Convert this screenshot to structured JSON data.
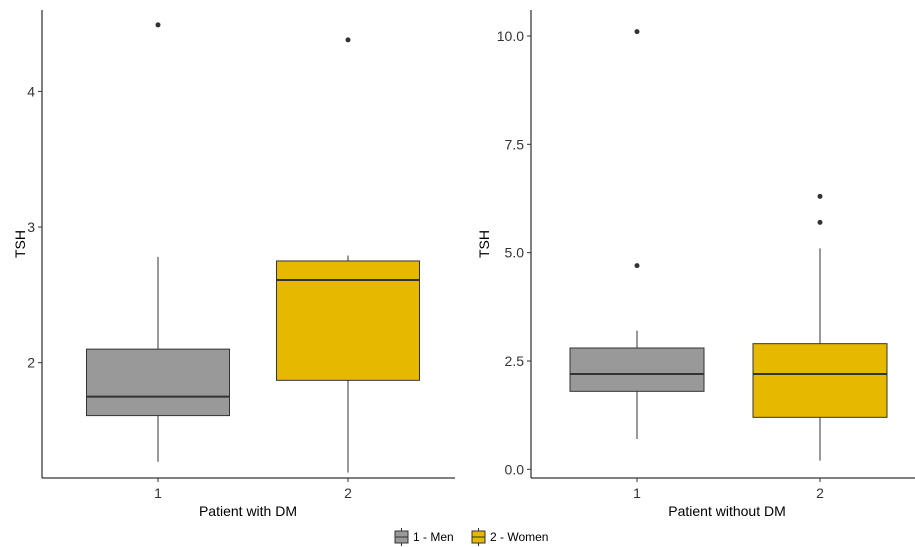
{
  "chart_data": [
    {
      "type": "box",
      "xlabel": "Patient with DM",
      "ylabel": "TSH",
      "ylim": [
        1.15,
        4.6
      ],
      "yticks": [
        2,
        3,
        4
      ],
      "ytick_labels": [
        "2",
        "3",
        "4"
      ],
      "categories": [
        "1",
        "2"
      ],
      "boxes": [
        {
          "group": "1 - Men",
          "whisker_low": 1.27,
          "q1": 1.61,
          "median": 1.75,
          "q3": 2.1,
          "whisker_high": 2.78,
          "outliers": [
            4.49
          ]
        },
        {
          "group": "2 - Women",
          "whisker_low": 1.19,
          "q1": 1.87,
          "median": 2.61,
          "q3": 2.75,
          "whisker_high": 2.79,
          "outliers": [
            4.38
          ]
        }
      ]
    },
    {
      "type": "box",
      "xlabel": "Patient without DM",
      "ylabel": "TSH",
      "ylim": [
        -0.2,
        10.6
      ],
      "yticks": [
        0,
        2.5,
        5,
        7.5,
        10
      ],
      "ytick_labels": [
        "0.0",
        "2.5",
        "5.0",
        "7.5",
        "10.0"
      ],
      "categories": [
        "1",
        "2"
      ],
      "boxes": [
        {
          "group": "1 - Men",
          "whisker_low": 0.7,
          "q1": 1.8,
          "median": 2.2,
          "q3": 2.8,
          "whisker_high": 3.2,
          "outliers": [
            4.7,
            10.1
          ]
        },
        {
          "group": "2 - Women",
          "whisker_low": 0.2,
          "q1": 1.2,
          "median": 2.2,
          "q3": 2.9,
          "whisker_high": 5.1,
          "outliers": [
            5.7,
            6.3
          ]
        }
      ]
    }
  ],
  "legend": {
    "position": "bottom",
    "items": [
      {
        "label": "1 - Men",
        "color": "#999999"
      },
      {
        "label": "2 - Women",
        "color": "#E6B800"
      }
    ]
  },
  "colors": {
    "men": "#999999",
    "women": "#E6B800",
    "line": "#333333"
  }
}
